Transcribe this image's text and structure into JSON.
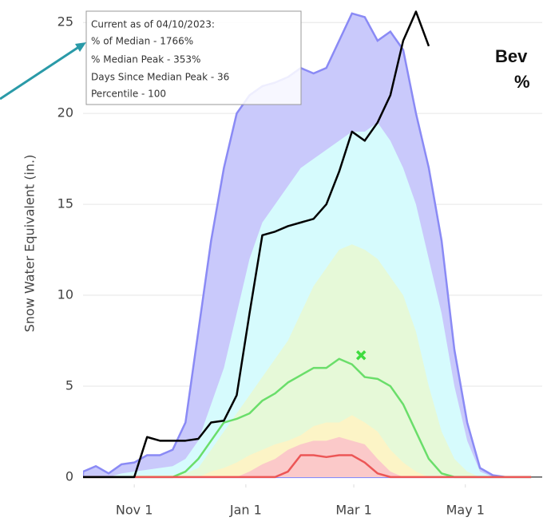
{
  "chart_data": {
    "type": "line",
    "y_label": "Snow Water Equivalent (in.)",
    "title_fragments": [
      "Bev",
      "%"
    ],
    "annotation": [
      "Current as of 04/10/2023:",
      "% of Median - 1766%",
      "% Median Peak - 353%",
      "Days Since Median Peak - 36",
      "Percentile - 100"
    ],
    "x": [
      3,
      10,
      17,
      24,
      31,
      38,
      45,
      52,
      59,
      66,
      73,
      80,
      87,
      94,
      101,
      108,
      115,
      122,
      129,
      136,
      143,
      150,
      157,
      164,
      171,
      178,
      185,
      192,
      199,
      206,
      213,
      220,
      227,
      234,
      241,
      248
    ],
    "xlim": [
      3,
      254
    ],
    "xticks": [
      {
        "value": 31,
        "label": "Nov 1"
      },
      {
        "value": 92,
        "label": "Jan 1"
      },
      {
        "value": 151,
        "label": "Mar 1"
      },
      {
        "value": 212,
        "label": "May 1"
      }
    ],
    "ylim": [
      -0.4,
      25.8
    ],
    "yticks": [
      0,
      5,
      10,
      15,
      20,
      25
    ],
    "grid": true,
    "series": [
      {
        "style": "area",
        "color": "#c9c9fb",
        "line_color": "#8a8af5",
        "values": [
          0.3,
          0.6,
          0.2,
          0.7,
          0.8,
          1.2,
          1.2,
          1.5,
          3,
          8,
          13,
          17,
          20,
          21,
          21.5,
          21.7,
          22,
          22.5,
          22.2,
          22.5,
          24,
          25.5,
          25.3,
          24,
          24.5,
          23.5,
          20,
          17,
          13,
          7,
          3,
          0.5,
          0.1,
          0,
          0,
          0
        ]
      },
      {
        "style": "area",
        "color": "#d6fbfd",
        "values": [
          0,
          0,
          0,
          0.2,
          0.3,
          0.4,
          0.5,
          0.6,
          1,
          2,
          4,
          6,
          9,
          12,
          14,
          15,
          16,
          17,
          17.5,
          18,
          18.5,
          19,
          19,
          19.5,
          18.5,
          17,
          15,
          12,
          9,
          5,
          2,
          0.3,
          0,
          0,
          0,
          0
        ]
      },
      {
        "style": "area",
        "color": "#e6f9d8",
        "values": [
          0,
          0,
          0,
          0,
          0.1,
          0.1,
          0.1,
          0.1,
          0.2,
          0.5,
          1.5,
          2.5,
          3.5,
          4.5,
          5.5,
          6.5,
          7.5,
          9,
          10.5,
          11.5,
          12.5,
          12.8,
          12.5,
          12,
          11,
          10,
          8,
          5,
          2.5,
          1,
          0.3,
          0,
          0,
          0,
          0,
          0
        ]
      },
      {
        "style": "area",
        "color": "#fcf4c6",
        "values": [
          0,
          0,
          0,
          0,
          0,
          0,
          0,
          0,
          0,
          0,
          0.3,
          0.5,
          0.8,
          1.2,
          1.5,
          1.8,
          2,
          2.3,
          2.8,
          3,
          3,
          3.4,
          3,
          2.5,
          1.5,
          0.8,
          0.3,
          0,
          0,
          0,
          0,
          0,
          0,
          0,
          0,
          0
        ]
      },
      {
        "style": "area",
        "color": "#fbc9c9",
        "values": [
          0,
          0,
          0,
          0,
          0,
          0,
          0,
          0,
          0,
          0,
          0,
          0,
          0,
          0.3,
          0.7,
          1,
          1.5,
          1.8,
          2,
          2,
          2.2,
          2,
          1.8,
          1,
          0.3,
          0,
          0,
          0,
          0,
          0,
          0,
          0,
          0,
          0,
          0,
          0
        ]
      },
      {
        "style": "line",
        "color": "#6ade6a",
        "values": [
          0,
          0,
          0,
          0,
          0,
          0,
          0,
          0,
          0.3,
          1,
          2,
          3,
          3.2,
          3.5,
          4.2,
          4.6,
          5.2,
          5.6,
          6,
          6,
          6.5,
          6.2,
          5.5,
          5.4,
          5,
          4,
          2.5,
          1,
          0.2,
          0,
          0,
          0,
          0,
          0,
          0,
          0
        ]
      },
      {
        "style": "line",
        "color": "#ec5656",
        "values": [
          0,
          0,
          0,
          0,
          0,
          0,
          0,
          0,
          0,
          0,
          0,
          0,
          0,
          0,
          0,
          0,
          0.3,
          1.2,
          1.2,
          1.1,
          1.2,
          1.2,
          0.8,
          0.2,
          0,
          0,
          0,
          0,
          0,
          0,
          0,
          0,
          0,
          0,
          0,
          0
        ]
      },
      {
        "style": "line",
        "color": "#000000",
        "values": [
          0,
          0,
          0,
          0,
          0,
          2.2,
          2,
          2,
          2,
          2.1,
          3,
          3.1,
          4.5,
          9,
          13.3,
          13.5,
          13.8,
          14,
          14.2,
          15,
          16.8,
          19,
          18.5,
          19.5,
          21,
          24,
          25.6,
          23.7,
          null,
          null,
          null,
          null,
          null,
          null,
          null,
          null
        ]
      }
    ],
    "peak": {
      "x": 155,
      "y": 6.7,
      "color": "#3fdc3f"
    }
  }
}
